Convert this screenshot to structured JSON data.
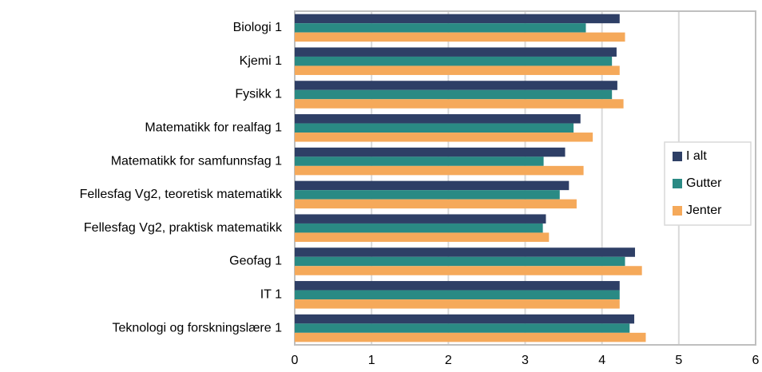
{
  "chart_data": {
    "type": "hbar",
    "categories": [
      "Biologi 1",
      "Kjemi 1",
      "Fysikk 1",
      "Matematikk for realfag 1",
      "Matematikk for samfunnsfag 1",
      "Fellesfag Vg2, teoretisk matematikk",
      "Fellesfag Vg2, praktisk matematikk",
      "Geofag 1",
      "IT 1",
      "Teknologi og forskningslære 1"
    ],
    "series": [
      {
        "name": "I alt",
        "color": "#2e3f66",
        "values": [
          4.23,
          4.19,
          4.2,
          3.72,
          3.52,
          3.57,
          3.27,
          4.43,
          4.23,
          4.42
        ]
      },
      {
        "name": "Gutter",
        "color": "#2a8a84",
        "values": [
          3.79,
          4.13,
          4.13,
          3.63,
          3.24,
          3.45,
          3.23,
          4.3,
          4.23,
          4.36
        ]
      },
      {
        "name": "Jenter",
        "color": "#f5a95a",
        "values": [
          4.3,
          4.23,
          4.28,
          3.88,
          3.76,
          3.67,
          3.31,
          4.52,
          4.23,
          4.57
        ]
      }
    ],
    "xlim": [
      0,
      6
    ],
    "xticks": [
      0,
      1,
      2,
      3,
      4,
      5,
      6
    ],
    "grid": true,
    "legend": "right"
  }
}
